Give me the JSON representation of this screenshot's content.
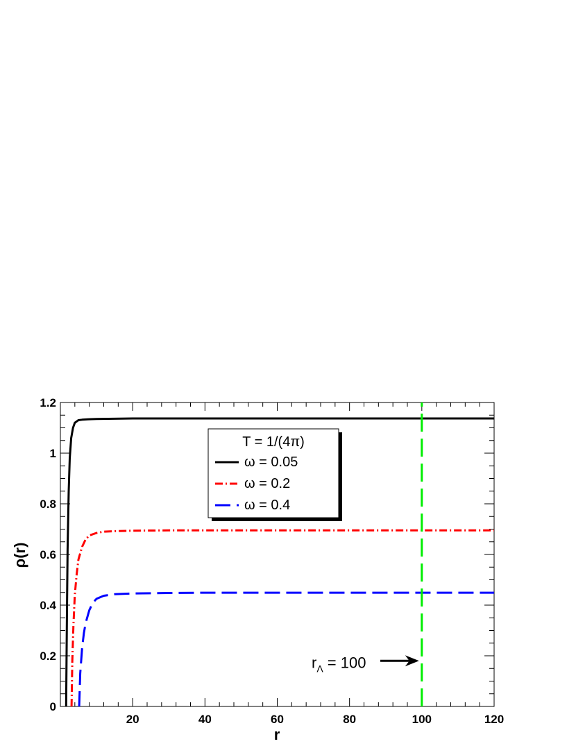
{
  "chart_data": {
    "type": "line",
    "title": "",
    "xlabel": "r",
    "ylabel": "ρ(r)",
    "xlim": [
      0,
      120
    ],
    "ylim": [
      0,
      1.2
    ],
    "grid": false,
    "x_tick_labels": [
      "20",
      "40",
      "60",
      "80",
      "100",
      "120"
    ],
    "y_tick_labels": [
      "0",
      "0.2",
      "0.4",
      "0.6",
      "0.8",
      "1",
      "1.2"
    ],
    "legend": {
      "title": "T = 1/(4π)",
      "placement": "top-center"
    },
    "series": [
      {
        "name": "ω = 0.05",
        "color": "#000000",
        "style": "solid",
        "x": [
          1.6,
          1.8,
          2.0,
          2.3,
          2.6,
          3.0,
          3.5,
          4.0,
          5.0,
          6.0,
          8.0,
          10,
          15,
          20,
          30,
          40,
          60,
          80,
          100,
          120
        ],
        "y": [
          0.0,
          0.35,
          0.62,
          0.85,
          0.98,
          1.06,
          1.1,
          1.12,
          1.13,
          1.132,
          1.134,
          1.135,
          1.136,
          1.137,
          1.137,
          1.137,
          1.137,
          1.137,
          1.137,
          1.137
        ]
      },
      {
        "name": "ω = 0.2",
        "color": "#ff0000",
        "style": "dash-dot",
        "x": [
          3.1,
          3.3,
          3.6,
          4.0,
          4.5,
          5.0,
          6.0,
          7.0,
          8.0,
          10,
          12,
          15,
          20,
          30,
          40,
          60,
          80,
          100,
          120
        ],
        "y": [
          0.0,
          0.18,
          0.32,
          0.44,
          0.52,
          0.58,
          0.63,
          0.66,
          0.675,
          0.685,
          0.69,
          0.692,
          0.694,
          0.695,
          0.695,
          0.695,
          0.695,
          0.695,
          0.695
        ]
      },
      {
        "name": "ω = 0.4",
        "color": "#0000ff",
        "style": "dashed",
        "x": [
          5.2,
          5.5,
          6.0,
          6.5,
          7.0,
          8.0,
          9.0,
          10,
          12,
          15,
          20,
          30,
          40,
          60,
          80,
          100,
          120
        ],
        "y": [
          0.0,
          0.13,
          0.23,
          0.29,
          0.33,
          0.38,
          0.41,
          0.425,
          0.437,
          0.443,
          0.446,
          0.448,
          0.449,
          0.449,
          0.449,
          0.449,
          0.449
        ]
      },
      {
        "name": "",
        "color": "#00ee00",
        "style": "dashed",
        "x": [
          100,
          100
        ],
        "y": [
          0,
          1.2
        ]
      }
    ],
    "annotations": [
      {
        "text_main": "r",
        "text_sub": "Λ",
        "text_rest": " = 100",
        "arrow_to": [
          100,
          0.18
        ]
      }
    ]
  }
}
